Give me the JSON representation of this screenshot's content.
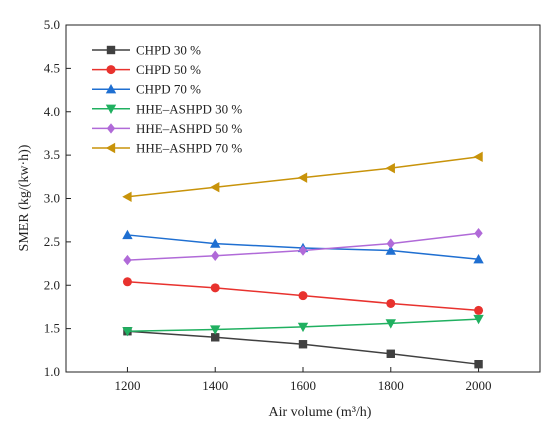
{
  "chart_data": {
    "type": "line",
    "xlabel": "Air volume (m³/h)",
    "ylabel": "SMER (kg/(kw·h))",
    "x": [
      1200,
      1400,
      1600,
      1800,
      2000
    ],
    "xticks": [
      "1200",
      "1400",
      "1600",
      "1800",
      "2000"
    ],
    "yticks": [
      "1.0",
      "1.5",
      "2.0",
      "2.5",
      "3.0",
      "3.5",
      "4.0",
      "4.5",
      "5.0"
    ],
    "xlim": [
      1060,
      2140
    ],
    "ylim": [
      1.0,
      5.0
    ],
    "grid": false,
    "legend_position": "top-left",
    "series": [
      {
        "name": "CHPD 30 %",
        "color": "#404040",
        "marker": "square",
        "values": [
          1.47,
          1.4,
          1.32,
          1.21,
          1.09
        ]
      },
      {
        "name": "CHPD 50 %",
        "color": "#e8322e",
        "marker": "circle",
        "values": [
          2.04,
          1.97,
          1.88,
          1.79,
          1.71
        ]
      },
      {
        "name": "CHPD 70 %",
        "color": "#1f6fd1",
        "marker": "triangle-up",
        "values": [
          2.58,
          2.48,
          2.43,
          2.4,
          2.3
        ]
      },
      {
        "name": "HHE–ASHPD 30 %",
        "color": "#20b060",
        "marker": "triangle-down",
        "values": [
          1.47,
          1.49,
          1.52,
          1.56,
          1.61
        ]
      },
      {
        "name": "HHE–ASHPD 50 %",
        "color": "#b06ad8",
        "marker": "diamond",
        "values": [
          2.29,
          2.34,
          2.4,
          2.48,
          2.6
        ]
      },
      {
        "name": "HHE–ASHPD 70 %",
        "color": "#c8930a",
        "marker": "triangle-left",
        "values": [
          3.02,
          3.13,
          3.24,
          3.35,
          3.48
        ]
      }
    ]
  }
}
